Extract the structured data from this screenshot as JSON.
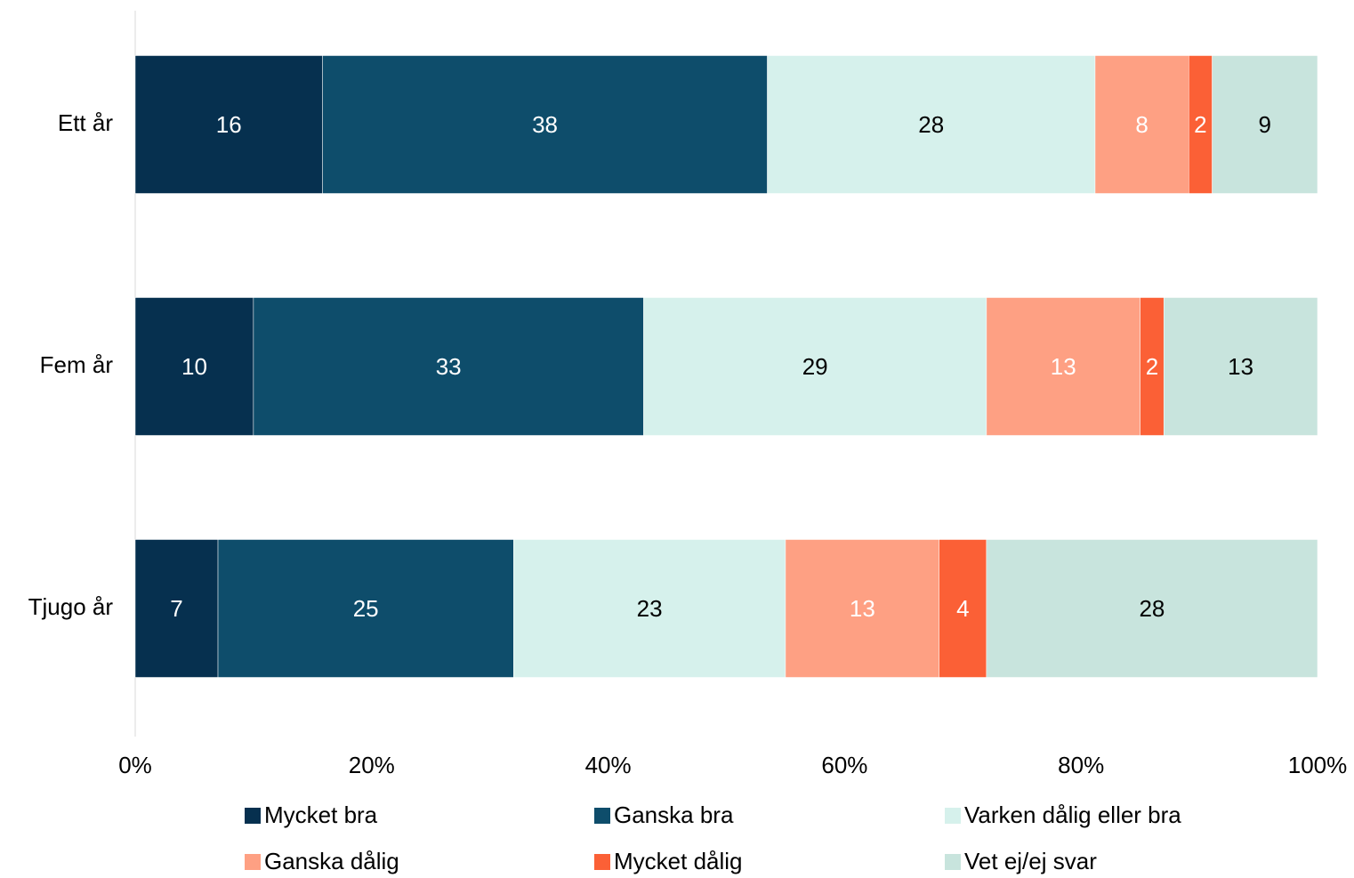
{
  "chart_data": {
    "type": "bar",
    "orientation": "horizontal",
    "stacking": "percent",
    "categories": [
      "Ett år",
      "Fem år",
      "Tjugo år"
    ],
    "series": [
      {
        "name": "Mycket bra",
        "color": "#06304f",
        "label_color": "#ffffff",
        "values": [
          16,
          10,
          7
        ]
      },
      {
        "name": "Ganska bra",
        "color": "#0e4d6b",
        "label_color": "#ffffff",
        "values": [
          38,
          33,
          25
        ]
      },
      {
        "name": "Varken dålig eller bra",
        "color": "#d6f1ec",
        "label_color": "#000000",
        "values": [
          28,
          29,
          23
        ]
      },
      {
        "name": "Ganska dålig",
        "color": "#fea083",
        "label_color": "#ffffff",
        "values": [
          8,
          13,
          13
        ]
      },
      {
        "name": "Mycket dålig",
        "color": "#fb6036",
        "label_color": "#ffffff",
        "values": [
          2,
          2,
          4
        ]
      },
      {
        "name": "Vet ej/ej svar",
        "color": "#c8e4dd",
        "label_color": "#000000",
        "values": [
          9,
          13,
          28
        ]
      }
    ],
    "xlim": [
      0,
      100
    ],
    "xticks": [
      {
        "value": 0,
        "label": "0%"
      },
      {
        "value": 20,
        "label": "20%"
      },
      {
        "value": 40,
        "label": "40%"
      },
      {
        "value": 60,
        "label": "60%"
      },
      {
        "value": 80,
        "label": "80%"
      },
      {
        "value": 100,
        "label": "100%"
      }
    ],
    "grid": false,
    "legend": "bottom"
  }
}
